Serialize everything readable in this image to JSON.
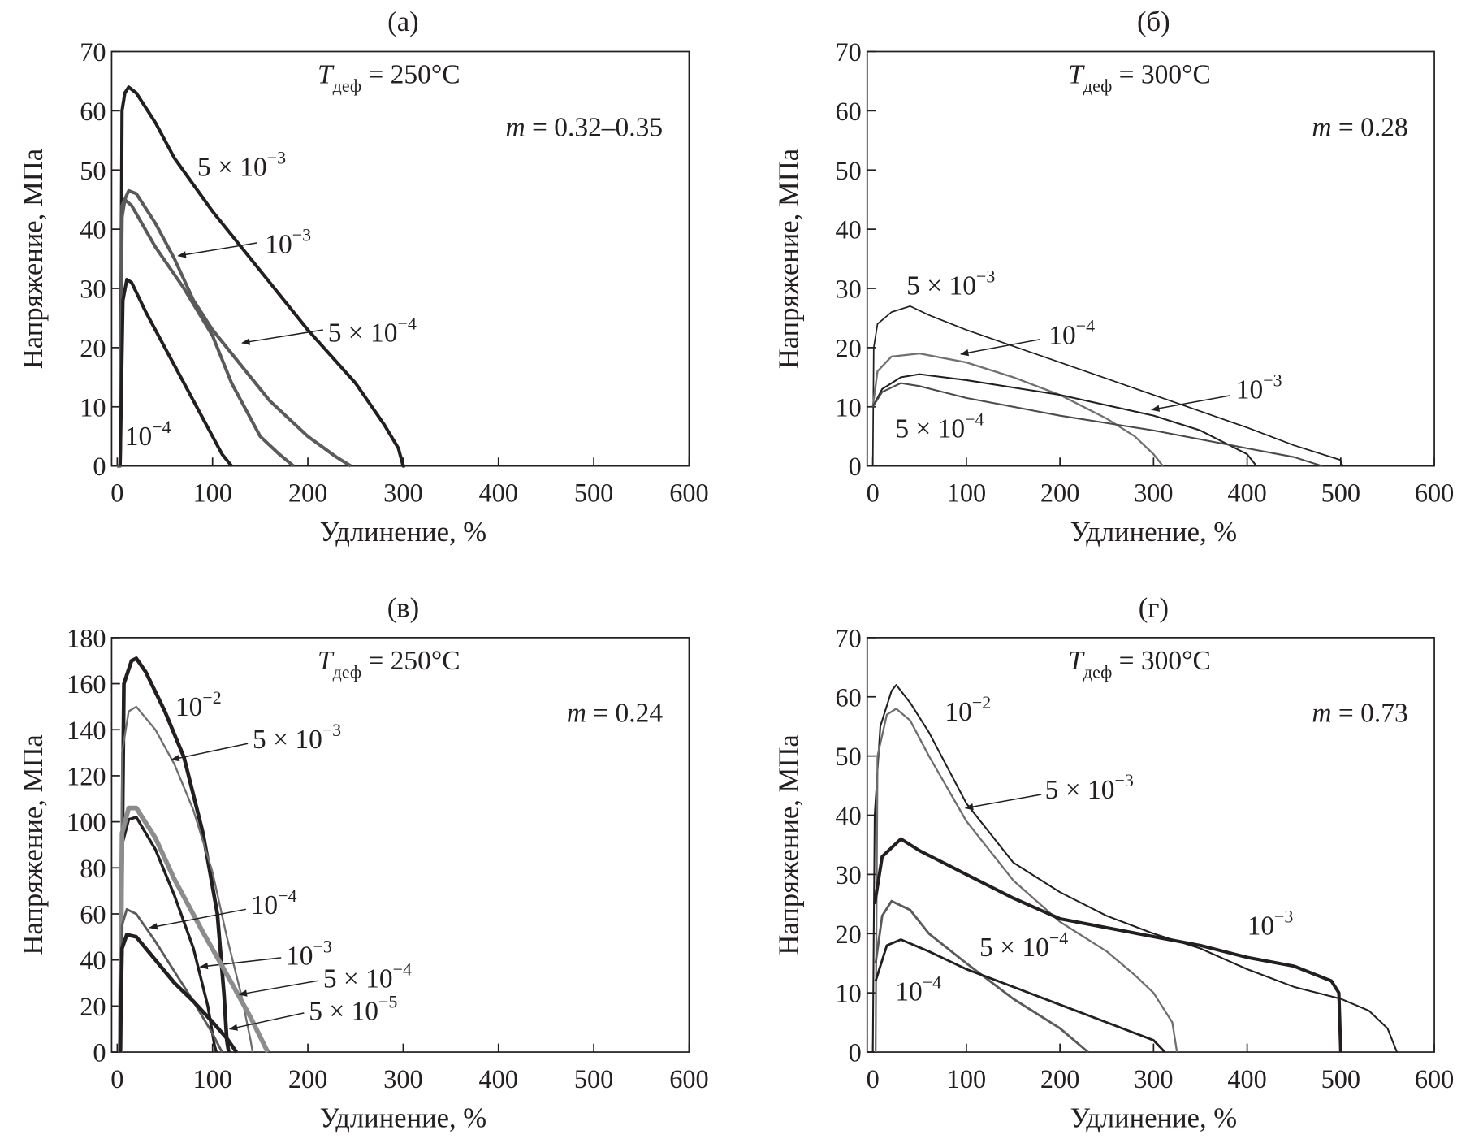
{
  "chart_data": [
    {
      "type": "line",
      "panel_label": "(а)",
      "xlabel": "Удлинение, %",
      "ylabel": "Напряжение, МПа",
      "xlim": [
        0,
        600
      ],
      "ylim": [
        0,
        70
      ],
      "xticks": [
        0,
        100,
        200,
        300,
        400,
        500,
        600
      ],
      "yticks": [
        0,
        10,
        20,
        30,
        40,
        50,
        60,
        70
      ],
      "temperature": {
        "symbol": "T",
        "sub": "деф",
        "value": " = 250°C"
      },
      "m_label": {
        "symbol": "m",
        "value": " = 0.32–0.35"
      },
      "series": [
        {
          "name": "5 × 10−3",
          "base": "5 × 10",
          "exp": "−3",
          "color": "#231f20",
          "width": 3.5,
          "x": [
            0,
            3,
            5,
            8,
            12,
            20,
            40,
            60,
            100,
            150,
            200,
            250,
            280,
            295,
            300,
            302
          ],
          "y": [
            0,
            0,
            60,
            63,
            64,
            63,
            58,
            52,
            43,
            33,
            23,
            14,
            7,
            3,
            0,
            0
          ],
          "label_at": [
            84,
            49
          ]
        },
        {
          "name": "10−3",
          "base": "10",
          "exp": "−3",
          "color": "#5a5a5c",
          "width": 3.5,
          "x": [
            0,
            3,
            5,
            8,
            15,
            40,
            70,
            100,
            120,
            150,
            170,
            185
          ],
          "y": [
            0,
            0,
            42,
            45,
            44,
            37,
            30,
            22,
            14,
            5,
            2,
            0
          ],
          "label_at": [
            155,
            36
          ],
          "arrow": [
            [
              147,
              37.7
            ],
            [
              64,
              35.5
            ]
          ]
        },
        {
          "name": "5 × 10−4",
          "base": "5 × 10",
          "exp": "−4",
          "color": "#5a5a5c",
          "width": 3.5,
          "x": [
            3,
            5,
            12,
            20,
            40,
            60,
            80,
            100,
            130,
            160,
            200,
            230,
            245
          ],
          "y": [
            0,
            44,
            46.5,
            46,
            41,
            35,
            28,
            23,
            17,
            11,
            5,
            1.5,
            0
          ],
          "label_at": [
            221,
            21
          ],
          "arrow": [
            [
              216,
              23
            ],
            [
              131,
              20.8
            ]
          ]
        },
        {
          "name": "10−4",
          "base": "10",
          "exp": "−4",
          "color": "#231f20",
          "width": 3.5,
          "x": [
            3,
            6,
            10,
            15,
            30,
            50,
            70,
            90,
            110,
            120
          ],
          "y": [
            0,
            28,
            31.5,
            31,
            26,
            20,
            14,
            8,
            2,
            0
          ],
          "label_at": [
            8,
            3.5
          ]
        }
      ]
    },
    {
      "type": "line",
      "panel_label": "(б)",
      "xlabel": "Удлинение, %",
      "ylabel": "Напряжение, МПа",
      "xlim": [
        0,
        600
      ],
      "ylim": [
        0,
        70
      ],
      "xticks": [
        0,
        100,
        200,
        300,
        400,
        500,
        600
      ],
      "yticks": [
        0,
        10,
        20,
        30,
        40,
        50,
        60,
        70
      ],
      "temperature": {
        "symbol": "T",
        "sub": "деф",
        "value": " = 300°C"
      },
      "m_label": {
        "symbol": "m",
        "value": " = 0.28"
      },
      "series": [
        {
          "name": "5 × 10−3",
          "base": "5 × 10",
          "exp": "−3",
          "color": "#231f20",
          "width": 1.5,
          "x": [
            0,
            1,
            5,
            20,
            40,
            60,
            100,
            200,
            300,
            400,
            450,
            500,
            502
          ],
          "y": [
            0,
            20,
            24,
            26,
            27,
            25.5,
            23,
            17.5,
            12,
            6.5,
            3.5,
            1,
            0
          ],
          "label_at": [
            36,
            29
          ]
        },
        {
          "name": "10−4",
          "base": "10",
          "exp": "−4",
          "color": "#707072",
          "width": 2,
          "x": [
            0,
            5,
            20,
            50,
            100,
            150,
            200,
            250,
            280,
            300,
            310
          ],
          "y": [
            10,
            16,
            18.5,
            19,
            17.5,
            15,
            12,
            8,
            5,
            2,
            0
          ],
          "label_at": [
            188,
            20.6
          ],
          "arrow": [
            [
              179,
              21.4
            ],
            [
              94,
              18.9
            ]
          ]
        },
        {
          "name": "10−3",
          "base": "10",
          "exp": "−3",
          "color": "#231f20",
          "width": 1.8,
          "x": [
            0,
            10,
            30,
            50,
            100,
            200,
            300,
            350,
            400,
            410
          ],
          "y": [
            10,
            13,
            15,
            15.5,
            14.5,
            12,
            8.5,
            6,
            2,
            0
          ],
          "label_at": [
            388,
            11.4
          ],
          "arrow": [
            [
              382,
              11.9
            ],
            [
              298,
              9.5
            ]
          ]
        },
        {
          "name": "5 × 10−4",
          "base": "5 × 10",
          "exp": "−4",
          "color": "#4a4a4c",
          "width": 1.8,
          "x": [
            0,
            10,
            30,
            50,
            100,
            200,
            300,
            400,
            450,
            480
          ],
          "y": [
            10,
            12.5,
            14,
            13.5,
            11.5,
            8.5,
            6,
            3,
            1.5,
            0
          ],
          "label_at": [
            24,
            4.8
          ]
        }
      ]
    },
    {
      "type": "line",
      "panel_label": "(в)",
      "xlabel": "Удлинение, %",
      "ylabel": "Напряжение, МПа",
      "xlim": [
        0,
        600
      ],
      "ylim": [
        0,
        180
      ],
      "xticks": [
        0,
        100,
        200,
        300,
        400,
        500,
        600
      ],
      "yticks": [
        0,
        20,
        40,
        60,
        80,
        100,
        120,
        140,
        160,
        180
      ],
      "temperature": {
        "symbol": "T",
        "sub": "деф",
        "value": " = 250°C"
      },
      "m_label": {
        "symbol": "m",
        "value": " = 0.24"
      },
      "series": [
        {
          "name": "10−2",
          "base": "10",
          "exp": "−2",
          "color": "#231f20",
          "width": 4,
          "x": [
            3,
            7,
            15,
            20,
            30,
            50,
            70,
            90,
            105,
            112,
            115,
            117
          ],
          "y": [
            0,
            160,
            170,
            171,
            165,
            148,
            128,
            95,
            60,
            25,
            5,
            0
          ],
          "label_at": [
            61,
            146
          ]
        },
        {
          "name": "5 × 10−3",
          "base": "5 × 10",
          "exp": "−3",
          "color": "#6e6e70",
          "width": 2,
          "x": [
            3,
            5,
            12,
            20,
            40,
            60,
            80,
            100,
            115,
            130,
            140,
            142
          ],
          "y": [
            0,
            130,
            148,
            150,
            140,
            125,
            105,
            78,
            50,
            25,
            5,
            0
          ],
          "label_at": [
            142,
            132
          ],
          "arrow": [
            [
              137,
              134
            ],
            [
              57,
              127
            ]
          ]
        },
        {
          "name": "10−3",
          "base": "10",
          "exp": "−3",
          "color": "#231f20",
          "width": 3,
          "x": [
            3,
            5,
            12,
            20,
            40,
            60,
            80,
            95,
            102,
            104
          ],
          "y": [
            0,
            90,
            101,
            102,
            88,
            68,
            45,
            20,
            3,
            0
          ],
          "label_at": [
            177,
            38
          ],
          "arrow": [
            [
              172,
              41
            ],
            [
              87,
              37
            ]
          ]
        },
        {
          "name": "5 × 10−4",
          "base": "5 × 10",
          "exp": "−4",
          "color": "#8c8c8e",
          "width": 5,
          "x": [
            3,
            5,
            12,
            20,
            40,
            60,
            90,
            120,
            140,
            158
          ],
          "y": [
            0,
            95,
            106,
            106,
            93,
            75,
            52,
            30,
            15,
            0
          ],
          "label_at": [
            216,
            28
          ],
          "arrow": [
            [
              211,
              31
            ],
            [
              128,
              25
            ]
          ]
        },
        {
          "name": "10−4",
          "base": "10",
          "exp": "−4",
          "color": "#5a5a5c",
          "width": 2.5,
          "x": [
            3,
            5,
            10,
            20,
            40,
            60,
            80,
            100,
            110
          ],
          "y": [
            0,
            55,
            62,
            60,
            48,
            35,
            22,
            8,
            0
          ],
          "label_at": [
            140,
            60
          ],
          "arrow": [
            [
              135,
              62
            ],
            [
              34,
              54
            ]
          ]
        },
        {
          "name": "5 × 10−5",
          "base": "5 × 10",
          "exp": "−5",
          "color": "#231f20",
          "width": 4,
          "x": [
            3,
            5,
            10,
            20,
            40,
            60,
            80,
            100,
            115,
            125
          ],
          "y": [
            0,
            45,
            51,
            50,
            40,
            30,
            22,
            13,
            6,
            0
          ],
          "label_at": [
            201,
            14
          ],
          "arrow": [
            [
              196,
              17
            ],
            [
              118,
              10
            ]
          ]
        }
      ]
    },
    {
      "type": "line",
      "panel_label": "(г)",
      "xlabel": "Удлинение, %",
      "ylabel": "Напряжение, МПа",
      "xlim": [
        0,
        600
      ],
      "ylim": [
        0,
        70
      ],
      "xticks": [
        0,
        100,
        200,
        300,
        400,
        500,
        600
      ],
      "yticks": [
        0,
        10,
        20,
        30,
        40,
        50,
        60,
        70
      ],
      "temperature": {
        "symbol": "T",
        "sub": "деф",
        "value": " = 300°C"
      },
      "m_label": {
        "symbol": "m",
        "value": " = 0.73"
      },
      "series": [
        {
          "name": "10−2",
          "base": "10",
          "exp": "−2",
          "color": "#231f20",
          "width": 1.8,
          "x": [
            0,
            2,
            8,
            20,
            25,
            40,
            60,
            100,
            150,
            200,
            250,
            300,
            350,
            400,
            450,
            500,
            530,
            550,
            560
          ],
          "y": [
            0,
            40,
            55,
            61,
            62,
            59,
            54,
            42,
            32,
            27,
            23,
            20,
            17.5,
            14,
            11,
            9,
            7,
            4,
            0
          ],
          "label_at": [
            77,
            56
          ]
        },
        {
          "name": "5 × 10−3",
          "base": "5 × 10",
          "exp": "−3",
          "color": "#6e6e70",
          "width": 2,
          "x": [
            3,
            5,
            15,
            25,
            40,
            60,
            100,
            150,
            200,
            250,
            280,
            300,
            320,
            325
          ],
          "y": [
            0,
            50,
            57,
            58,
            56,
            50,
            39,
            29,
            22,
            17,
            13,
            10,
            5,
            0
          ],
          "label_at": [
            184,
            42.8
          ],
          "arrow": [
            [
              180,
              43.5
            ],
            [
              99,
              41.2
            ]
          ]
        },
        {
          "name": "10−3",
          "base": "10",
          "exp": "−3",
          "color": "#231f20",
          "width": 3.5,
          "x": [
            2,
            10,
            30,
            50,
            100,
            150,
            200,
            250,
            300,
            350,
            400,
            450,
            490,
            498,
            500
          ],
          "y": [
            25,
            33,
            36,
            34,
            30,
            26,
            22.5,
            21,
            19.5,
            18,
            16,
            14.5,
            12,
            10,
            0
          ],
          "label_at": [
            400,
            19.8
          ]
        },
        {
          "name": "5 × 10−4",
          "base": "5 × 10",
          "exp": "−4",
          "color": "#5a5a5c",
          "width": 2.5,
          "x": [
            3,
            10,
            20,
            40,
            60,
            100,
            150,
            200,
            230
          ],
          "y": [
            15,
            23,
            25.5,
            24,
            20,
            15,
            9,
            4,
            0
          ],
          "label_at": [
            114,
            16.2
          ]
        },
        {
          "name": "10−4",
          "base": "10",
          "exp": "−4",
          "color": "#231f20",
          "width": 2.5,
          "x": [
            3,
            15,
            30,
            60,
            100,
            150,
            200,
            250,
            300,
            312
          ],
          "y": [
            12,
            18,
            19,
            17,
            14,
            11,
            8,
            5,
            2,
            0
          ],
          "label_at": [
            24,
            8.7
          ]
        }
      ]
    }
  ]
}
